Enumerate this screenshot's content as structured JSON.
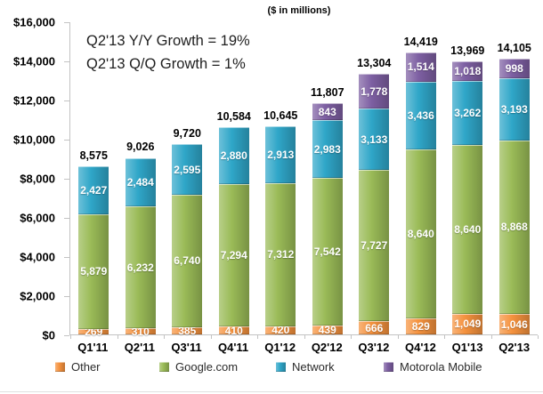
{
  "header": {
    "title": "($ in millions)"
  },
  "annotation": {
    "line1": "Q2'13 Y/Y Growth = 19%",
    "line2": "Q2'13 Q/Q Growth = 1%"
  },
  "chart_data": {
    "type": "bar",
    "stacked": true,
    "title": "($ in millions)",
    "categories": [
      "Q1'11",
      "Q2'11",
      "Q3'11",
      "Q4'11",
      "Q1'12",
      "Q2'12",
      "Q3'12",
      "Q4'12",
      "Q1'13",
      "Q2'13"
    ],
    "series": [
      {
        "name": "Other",
        "color": "#F5923E",
        "values": [
          269,
          310,
          385,
          410,
          420,
          439,
          666,
          829,
          1049,
          1046
        ]
      },
      {
        "name": "Google.com",
        "color": "#9ABB57",
        "values": [
          5879,
          6232,
          6740,
          7294,
          7312,
          7542,
          7727,
          8640,
          8640,
          8868
        ]
      },
      {
        "name": "Network",
        "color": "#2FA6C8",
        "values": [
          2427,
          2484,
          2595,
          2880,
          2913,
          2983,
          3133,
          3436,
          3262,
          3193
        ]
      },
      {
        "name": "Motorola Mobile",
        "color": "#7D5FA2",
        "values": [
          0,
          0,
          0,
          0,
          0,
          843,
          1778,
          1514,
          1018,
          998
        ]
      }
    ],
    "totals": [
      8575,
      9026,
      9720,
      10584,
      10645,
      11807,
      13304,
      14419,
      13969,
      14105
    ],
    "ylim": [
      0,
      16000
    ],
    "ytick_step": 2000,
    "ytick_labels": [
      "$0",
      "$2,000",
      "$4,000",
      "$6,000",
      "$8,000",
      "$10,000",
      "$12,000",
      "$14,000",
      "$16,000"
    ],
    "legend_entries": [
      "Other",
      "Google.com",
      "Network",
      "Motorola Mobile"
    ],
    "legend_position": "bottom",
    "grid": false,
    "annotations": [
      "Q2'13 Y/Y Growth = 19%",
      "Q2'13 Q/Q Growth = 1%"
    ]
  }
}
